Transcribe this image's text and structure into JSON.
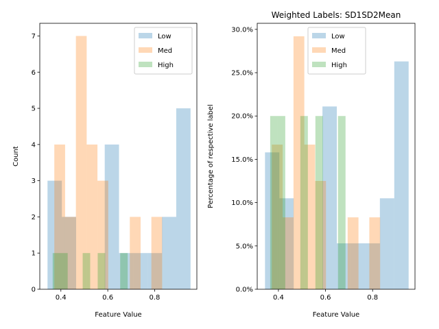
{
  "chart_data": [
    {
      "type": "bar",
      "subtype": "histogram",
      "title": "",
      "xlabel": "Feature Value",
      "ylabel": "Count",
      "xlim": [
        0.31,
        0.98
      ],
      "ylim": [
        0,
        7.35
      ],
      "xticks": [
        {
          "value": 0.4,
          "label": "0.4"
        },
        {
          "value": 0.6,
          "label": "0.6"
        },
        {
          "value": 0.8,
          "label": "0.8"
        }
      ],
      "yticks": [
        {
          "value": 0,
          "label": "0"
        },
        {
          "value": 1,
          "label": "1"
        },
        {
          "value": 2,
          "label": "2"
        },
        {
          "value": 3,
          "label": "3"
        },
        {
          "value": 4,
          "label": "4"
        },
        {
          "value": 5,
          "label": "5"
        },
        {
          "value": 6,
          "label": "6"
        },
        {
          "value": 7,
          "label": "7"
        }
      ],
      "legend_position": "top-right",
      "series": [
        {
          "name": "Low",
          "color": "#1f77b4",
          "opacity": 0.3,
          "bins": [
            {
              "x0": 0.343,
              "x1": 0.404,
              "value": 3
            },
            {
              "x0": 0.404,
              "x1": 0.465,
              "value": 2
            },
            {
              "x0": 0.465,
              "x1": 0.526,
              "value": 0
            },
            {
              "x0": 0.526,
              "x1": 0.587,
              "value": 0
            },
            {
              "x0": 0.587,
              "x1": 0.648,
              "value": 4
            },
            {
              "x0": 0.648,
              "x1": 0.709,
              "value": 1
            },
            {
              "x0": 0.709,
              "x1": 0.77,
              "value": 1
            },
            {
              "x0": 0.77,
              "x1": 0.831,
              "value": 1
            },
            {
              "x0": 0.831,
              "x1": 0.892,
              "value": 2
            },
            {
              "x0": 0.892,
              "x1": 0.953,
              "value": 5
            }
          ]
        },
        {
          "name": "Med",
          "color": "#ff7f0e",
          "opacity": 0.3,
          "bins": [
            {
              "x0": 0.372,
              "x1": 0.418,
              "value": 4
            },
            {
              "x0": 0.418,
              "x1": 0.464,
              "value": 2
            },
            {
              "x0": 0.464,
              "x1": 0.51,
              "value": 7
            },
            {
              "x0": 0.51,
              "x1": 0.556,
              "value": 4
            },
            {
              "x0": 0.556,
              "x1": 0.602,
              "value": 3
            },
            {
              "x0": 0.602,
              "x1": 0.648,
              "value": 0
            },
            {
              "x0": 0.648,
              "x1": 0.694,
              "value": 0
            },
            {
              "x0": 0.694,
              "x1": 0.74,
              "value": 2
            },
            {
              "x0": 0.74,
              "x1": 0.786,
              "value": 0
            },
            {
              "x0": 0.786,
              "x1": 0.832,
              "value": 2
            }
          ]
        },
        {
          "name": "High",
          "color": "#2ca02c",
          "opacity": 0.3,
          "bins": [
            {
              "x0": 0.365,
              "x1": 0.397,
              "value": 1
            },
            {
              "x0": 0.397,
              "x1": 0.429,
              "value": 1
            },
            {
              "x0": 0.429,
              "x1": 0.461,
              "value": 0
            },
            {
              "x0": 0.461,
              "x1": 0.493,
              "value": 0
            },
            {
              "x0": 0.493,
              "x1": 0.525,
              "value": 1
            },
            {
              "x0": 0.525,
              "x1": 0.557,
              "value": 0
            },
            {
              "x0": 0.557,
              "x1": 0.589,
              "value": 1
            },
            {
              "x0": 0.589,
              "x1": 0.621,
              "value": 0
            },
            {
              "x0": 0.621,
              "x1": 0.653,
              "value": 0
            },
            {
              "x0": 0.653,
              "x1": 0.685,
              "value": 1
            }
          ]
        }
      ]
    },
    {
      "type": "bar",
      "subtype": "histogram",
      "title": "Weighted Labels: SD1SD2Mean",
      "xlabel": "Feature Value",
      "ylabel": "Percentage of respective label",
      "xlim": [
        0.31,
        0.98
      ],
      "ylim": [
        0,
        0.307
      ],
      "xticks": [
        {
          "value": 0.4,
          "label": "0.4"
        },
        {
          "value": 0.6,
          "label": "0.6"
        },
        {
          "value": 0.8,
          "label": "0.8"
        }
      ],
      "yticks": [
        {
          "value": 0.0,
          "label": "0.0%"
        },
        {
          "value": 0.05,
          "label": "5.0%"
        },
        {
          "value": 0.1,
          "label": "10.0%"
        },
        {
          "value": 0.15,
          "label": "15.0%"
        },
        {
          "value": 0.2,
          "label": "20.0%"
        },
        {
          "value": 0.25,
          "label": "25.0%"
        },
        {
          "value": 0.3,
          "label": "30.0%"
        }
      ],
      "legend_position": "top-center",
      "series": [
        {
          "name": "Low",
          "color": "#1f77b4",
          "opacity": 0.3,
          "bins": [
            {
              "x0": 0.343,
              "x1": 0.404,
              "value": 0.158
            },
            {
              "x0": 0.404,
              "x1": 0.465,
              "value": 0.105
            },
            {
              "x0": 0.465,
              "x1": 0.526,
              "value": 0
            },
            {
              "x0": 0.526,
              "x1": 0.587,
              "value": 0
            },
            {
              "x0": 0.587,
              "x1": 0.648,
              "value": 0.211
            },
            {
              "x0": 0.648,
              "x1": 0.709,
              "value": 0.053
            },
            {
              "x0": 0.709,
              "x1": 0.77,
              "value": 0.053
            },
            {
              "x0": 0.77,
              "x1": 0.831,
              "value": 0.053
            },
            {
              "x0": 0.831,
              "x1": 0.892,
              "value": 0.105
            },
            {
              "x0": 0.892,
              "x1": 0.953,
              "value": 0.263
            }
          ]
        },
        {
          "name": "Med",
          "color": "#ff7f0e",
          "opacity": 0.3,
          "bins": [
            {
              "x0": 0.372,
              "x1": 0.418,
              "value": 0.167
            },
            {
              "x0": 0.418,
              "x1": 0.464,
              "value": 0.083
            },
            {
              "x0": 0.464,
              "x1": 0.51,
              "value": 0.292
            },
            {
              "x0": 0.51,
              "x1": 0.556,
              "value": 0.167
            },
            {
              "x0": 0.556,
              "x1": 0.602,
              "value": 0.125
            },
            {
              "x0": 0.602,
              "x1": 0.648,
              "value": 0
            },
            {
              "x0": 0.648,
              "x1": 0.694,
              "value": 0
            },
            {
              "x0": 0.694,
              "x1": 0.74,
              "value": 0.083
            },
            {
              "x0": 0.74,
              "x1": 0.786,
              "value": 0
            },
            {
              "x0": 0.786,
              "x1": 0.832,
              "value": 0.083
            }
          ]
        },
        {
          "name": "High",
          "color": "#2ca02c",
          "opacity": 0.3,
          "bins": [
            {
              "x0": 0.365,
              "x1": 0.397,
              "value": 0.2
            },
            {
              "x0": 0.397,
              "x1": 0.429,
              "value": 0.2
            },
            {
              "x0": 0.429,
              "x1": 0.461,
              "value": 0
            },
            {
              "x0": 0.461,
              "x1": 0.493,
              "value": 0
            },
            {
              "x0": 0.493,
              "x1": 0.525,
              "value": 0.2
            },
            {
              "x0": 0.525,
              "x1": 0.557,
              "value": 0
            },
            {
              "x0": 0.557,
              "x1": 0.589,
              "value": 0.2
            },
            {
              "x0": 0.589,
              "x1": 0.621,
              "value": 0
            },
            {
              "x0": 0.621,
              "x1": 0.653,
              "value": 0
            },
            {
              "x0": 0.653,
              "x1": 0.685,
              "value": 0.2
            }
          ]
        }
      ]
    }
  ]
}
